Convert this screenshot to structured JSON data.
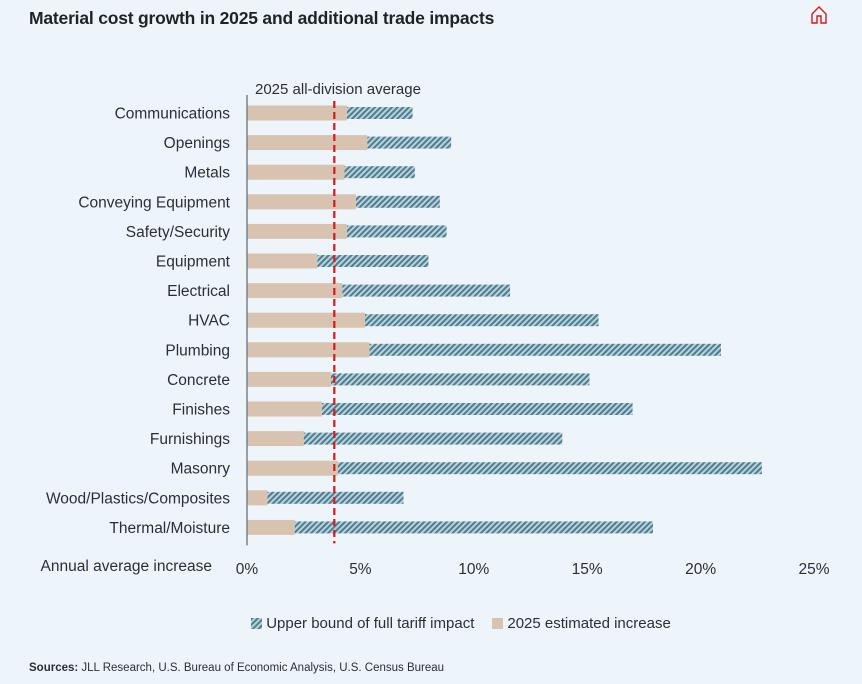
{
  "header": {
    "title": "Material cost growth in 2025 and additional trade impacts",
    "home_icon": "home-icon"
  },
  "colors": {
    "background": "#eef5fa",
    "solid_bar": "#d7c3b0",
    "hatch_dark": "#4f7d90",
    "hatch_light": "#b9d2dc",
    "average_line": "#d7191c",
    "home_icon": "#d7191c"
  },
  "legend": {
    "upper_bound_label": "Upper bound of full tariff impact",
    "estimated_label": "2025 estimated increase"
  },
  "sources": {
    "prefix": "Sources:",
    "text": " JLL Research, U.S. Bureau of Economic Analysis, U.S. Census Bureau"
  },
  "chart_data": {
    "type": "bar",
    "orientation": "horizontal",
    "stacked": true,
    "title": "Material cost growth in 2025 and additional trade impacts",
    "xlabel": "Annual average increase",
    "ylabel": "",
    "xlim": [
      0,
      25
    ],
    "x_ticks": [
      0,
      5,
      10,
      15,
      20,
      25
    ],
    "x_tick_labels": [
      "0%",
      "5%",
      "10%",
      "15%",
      "20%",
      "25%"
    ],
    "grid": false,
    "legend_position": "bottom",
    "categories": [
      "Communications",
      "Openings",
      "Metals",
      "Conveying Equipment",
      "Safety/Security",
      "Equipment",
      "Electrical",
      "HVAC",
      "Plumbing",
      "Concrete",
      "Finishes",
      "Furnishings",
      "Masonry",
      "Wood/Plastics/Composites",
      "Thermal/Moisture"
    ],
    "series": [
      {
        "name": "2025 estimated increase",
        "style": "solid",
        "values": [
          4.4,
          5.3,
          4.3,
          4.8,
          4.4,
          3.1,
          4.2,
          5.2,
          5.4,
          3.7,
          3.3,
          2.5,
          4.0,
          0.9,
          2.1
        ]
      },
      {
        "name": "Upper bound of full tariff impact",
        "style": "hatched",
        "note": "total bar end value (cumulative, includes 2025 estimated increase)",
        "values": [
          7.3,
          9.0,
          7.4,
          8.5,
          8.8,
          8.0,
          11.6,
          15.5,
          20.9,
          15.1,
          17.0,
          13.9,
          22.7,
          6.9,
          17.9
        ]
      }
    ],
    "reference_line": {
      "label": "2025 all-division average",
      "value": 3.85,
      "style": "dashed"
    }
  }
}
